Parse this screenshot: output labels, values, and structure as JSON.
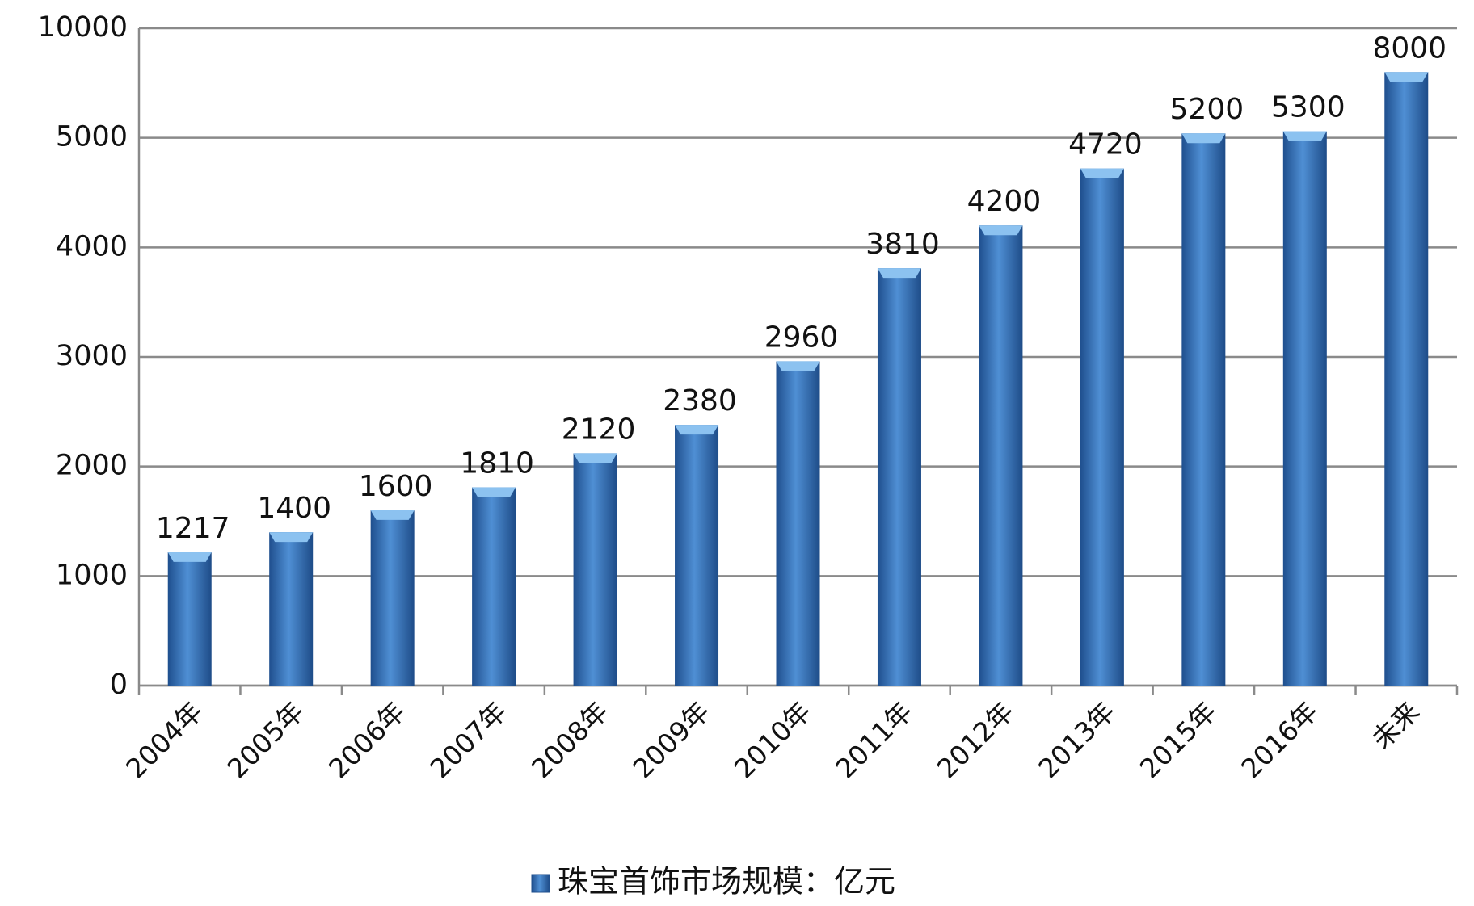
{
  "chart_data": {
    "type": "bar",
    "categories": [
      "2004年",
      "2005年",
      "2006年",
      "2007年",
      "2008年",
      "2009年",
      "2010年",
      "2011年",
      "2012年",
      "2013年",
      "2015年",
      "2016年",
      "未来"
    ],
    "series": [
      {
        "name": "珠宝首饰市场规模：亿元",
        "color": "#3a75c0",
        "values": [
          1217,
          1400,
          1600,
          1810,
          2120,
          2380,
          2960,
          3810,
          4200,
          4720,
          5200,
          5300,
          8000
        ]
      }
    ],
    "ylim": [
      0,
      10000
    ],
    "yticks": [
      0,
      1000,
      2000,
      3000,
      4000,
      5000,
      10000
    ],
    "grid": true,
    "legend": "bottom"
  }
}
